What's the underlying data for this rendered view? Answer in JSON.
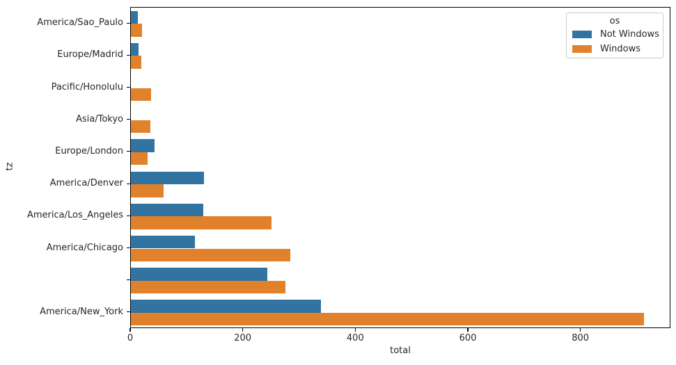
{
  "figure": {
    "xlabel": "total",
    "ylabel": "tz",
    "background": "#ffffff",
    "spine_color": "#000000",
    "text_color": "#262626"
  },
  "legend": {
    "title": "os",
    "entries": [
      {
        "label": "Not Windows",
        "color": "#3274a1"
      },
      {
        "label": "Windows",
        "color": "#e1812c"
      }
    ]
  },
  "chart_data": {
    "type": "bar",
    "orientation": "horizontal",
    "title": "",
    "xlabel": "total",
    "ylabel": "tz",
    "xlim": [
      0,
      960
    ],
    "x_ticks": [
      0,
      200,
      400,
      600,
      800
    ],
    "grid": false,
    "legend_title": "os",
    "legend_position": "upper right",
    "categories": [
      "America/Sao_Paulo",
      "Europe/Madrid",
      "Pacific/Honolulu",
      "Asia/Tokyo",
      "Europe/London",
      "America/Denver",
      "America/Los_Angeles",
      "America/Chicago",
      "",
      "America/New_York"
    ],
    "series": [
      {
        "name": "Not Windows",
        "color": "#3274a1",
        "values": [
          12,
          14,
          0,
          0,
          42,
          130,
          129,
          114,
          243,
          338
        ]
      },
      {
        "name": "Windows",
        "color": "#e1812c",
        "values": [
          20,
          18,
          36,
          35,
          30,
          58,
          250,
          283,
          275,
          912
        ]
      }
    ]
  }
}
